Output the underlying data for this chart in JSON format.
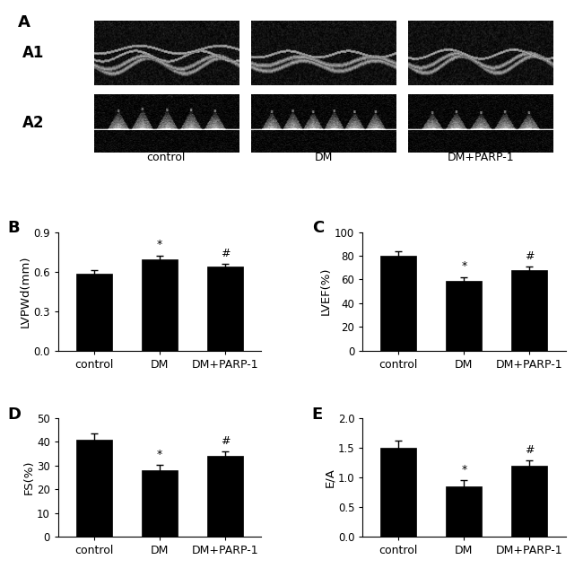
{
  "bar_color": "#000000",
  "bar_width": 0.55,
  "categories": [
    "control",
    "DM",
    "DM+PARP-1"
  ],
  "B_values": [
    0.585,
    0.695,
    0.635
  ],
  "B_errors": [
    0.025,
    0.028,
    0.022
  ],
  "B_ylabel": "LVPWd(mm)",
  "B_ylim": [
    0,
    0.9
  ],
  "B_yticks": [
    0,
    0.3,
    0.6,
    0.9
  ],
  "B_sig_DM": "*",
  "B_sig_DMPARP": "#",
  "C_values": [
    80.0,
    59.0,
    68.0
  ],
  "C_errors": [
    3.5,
    3.0,
    2.8
  ],
  "C_ylabel": "LVEF(%)",
  "C_ylim": [
    0,
    100
  ],
  "C_yticks": [
    0,
    20,
    40,
    60,
    80,
    100
  ],
  "C_sig_DM": "*",
  "C_sig_DMPARP": "#",
  "D_values": [
    41.0,
    28.0,
    34.0
  ],
  "D_errors": [
    2.5,
    2.2,
    2.0
  ],
  "D_ylabel": "FS(%)",
  "D_ylim": [
    0,
    50
  ],
  "D_yticks": [
    0,
    10,
    20,
    30,
    40,
    50
  ],
  "D_sig_DM": "*",
  "D_sig_DMPARP": "#",
  "E_values": [
    1.5,
    0.85,
    1.2
  ],
  "E_errors": [
    0.12,
    0.1,
    0.09
  ],
  "E_ylabel": "E/A",
  "E_ylim": [
    0,
    2
  ],
  "E_yticks": [
    0,
    0.5,
    1.0,
    1.5,
    2.0
  ],
  "E_sig_DM": "*",
  "E_sig_DMPARP": "#",
  "bg_color": "#ffffff",
  "tick_fontsize": 8.5,
  "ylabel_fontsize": 9.5,
  "xlabel_fontsize": 9.0,
  "panel_label_fontsize": 13
}
